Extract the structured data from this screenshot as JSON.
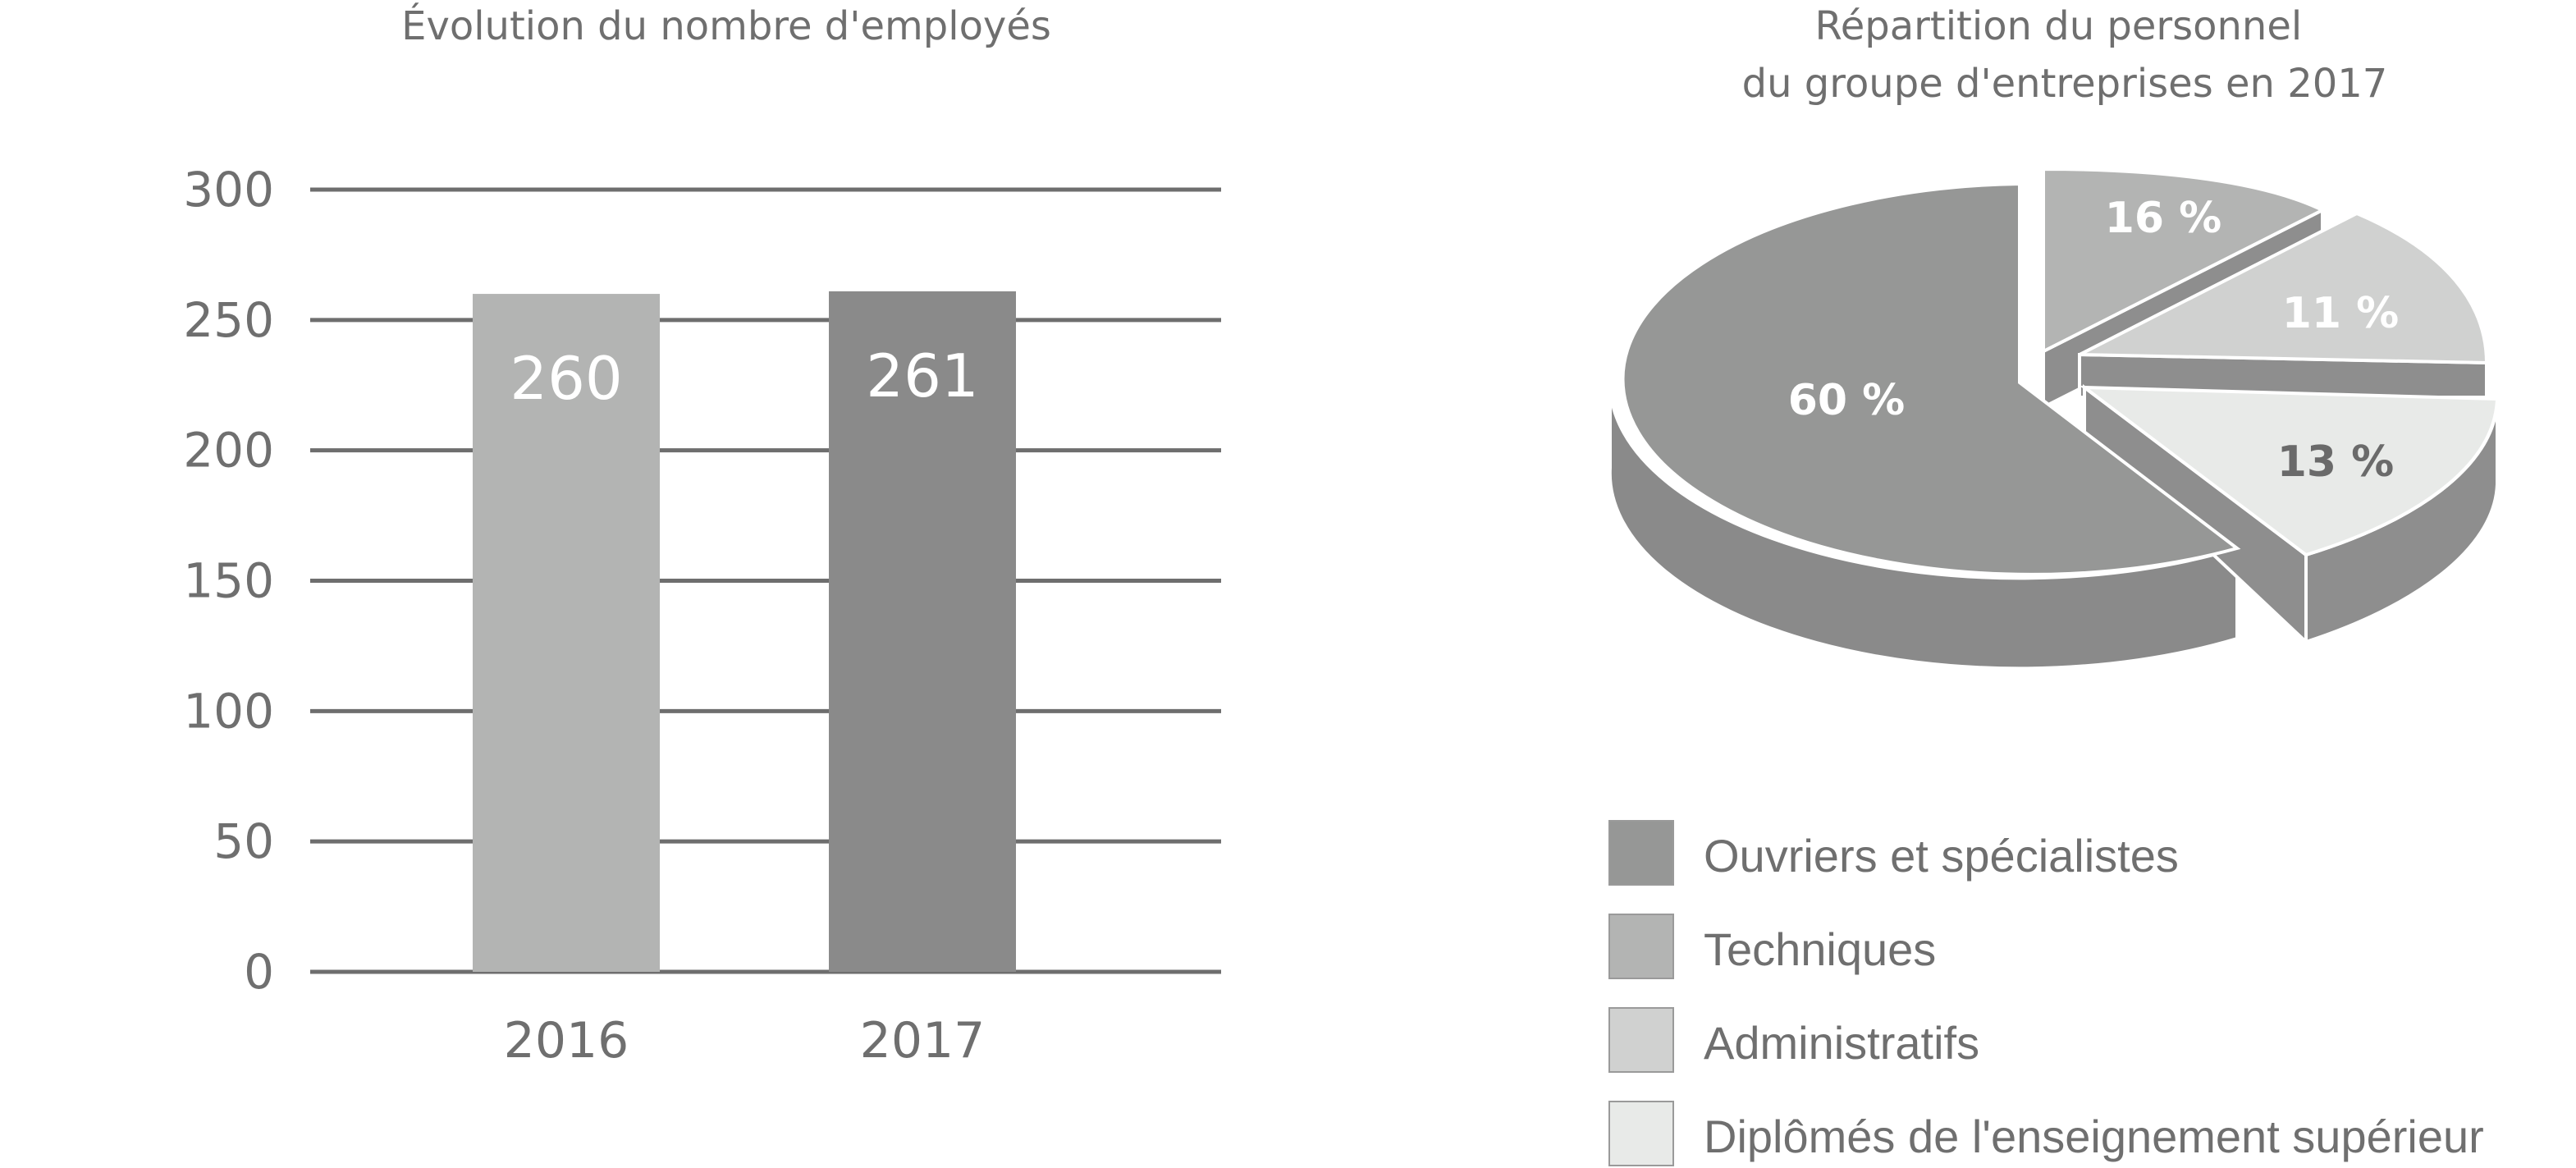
{
  "chart_data": [
    {
      "type": "bar",
      "title": "Évolution du nombre d'employés",
      "categories": [
        "2016",
        "2017"
      ],
      "values": [
        260,
        261
      ],
      "data_labels": [
        "260",
        "261"
      ],
      "ylim": [
        0,
        300
      ],
      "yticks": [
        0,
        50,
        100,
        150,
        200,
        250,
        300
      ],
      "ytick_labels": [
        "0",
        "50",
        "100",
        "150",
        "200",
        "250",
        "300"
      ],
      "grid": true,
      "colors": [
        "#b3b4b3",
        "#8a8a8a"
      ]
    },
    {
      "type": "pie",
      "title_lines": [
        "Répartition du personnel",
        "du groupe d'entreprises en 2017"
      ],
      "three_d": true,
      "exploded": true,
      "legend_position": "bottom",
      "slices": [
        {
          "label": "Ouvriers et spécialistes",
          "value": 60,
          "value_label": "60 %",
          "color": "#969796",
          "side_color": "#8a8a8a"
        },
        {
          "label": "Techniques",
          "value": 16,
          "value_label": "16 %",
          "color": "#b3b4b3",
          "side_color": "#8e8e8e"
        },
        {
          "label": "Administratifs",
          "value": 11,
          "value_label": "11 %",
          "color": "#d0d1d0",
          "side_color": "#8e8e8e"
        },
        {
          "label": "Diplômés de l'enseignement supérieur",
          "value": 13,
          "value_label": "13 %",
          "color": "#e8eae8",
          "side_color": "#8e8e8e"
        }
      ]
    }
  ],
  "colors": {
    "text": "#6f6f6f",
    "grid": "#6e6e6e",
    "label_on_bar": "#ffffff",
    "label_dark_slice": "#6a6a6a"
  }
}
